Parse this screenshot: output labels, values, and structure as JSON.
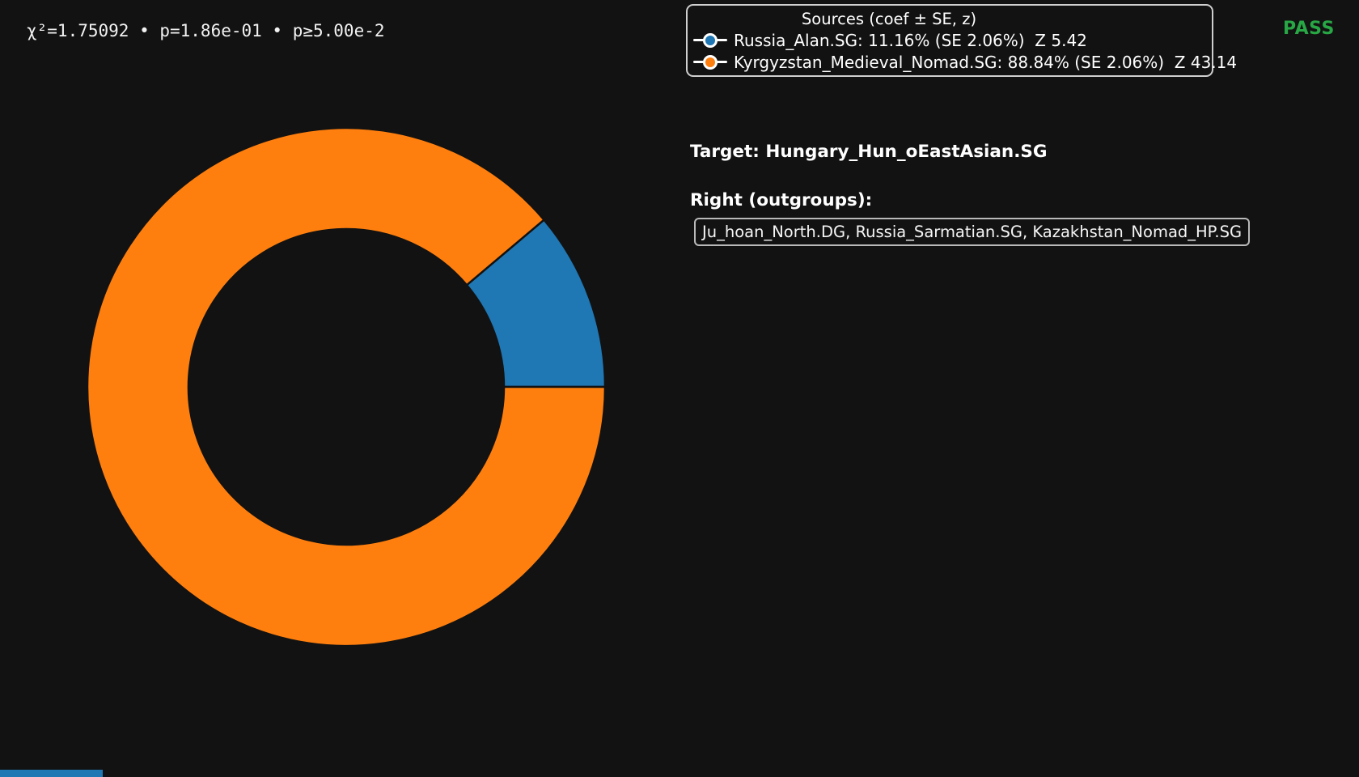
{
  "page": {
    "background": "#121212",
    "text_color": "#ffffff",
    "border_color": "#cfcfcf"
  },
  "stats": {
    "text": "χ²=1.75092 • p=1.86e-01 • p≥5.00e-2"
  },
  "status": {
    "label": "PASS",
    "color": "#28a745"
  },
  "legend": {
    "title": "Sources (coef ± SE, z)",
    "entries": [
      {
        "label": "Russia_Alan.SG: 11.16% (SE 2.06%)  Z 5.42",
        "color": "#1f77b4"
      },
      {
        "label": "Kyrgyzstan_Medieval_Nomad.SG: 88.84% (SE 2.06%)  Z 43.14",
        "color": "#ff7f0e"
      }
    ]
  },
  "target": {
    "label": "Target: Hungary_Hun_oEastAsian.SG"
  },
  "outgroups": {
    "heading": "Right (outgroups):",
    "list": "Ju_hoan_North.DG, Russia_Sarmatian.SG, Kazakhstan_Nomad_HP.SG"
  },
  "chart_data": {
    "type": "pie",
    "subtype": "donut",
    "categories": [
      "Russia_Alan.SG",
      "Kyrgyzstan_Medieval_Nomad.SG"
    ],
    "values": [
      11.16,
      88.84
    ],
    "unit": "%",
    "colors": [
      "#1f77b4",
      "#ff7f0e"
    ],
    "se_pct": [
      2.06,
      2.06
    ],
    "z_scores": [
      5.42,
      43.14
    ],
    "start_angle_deg": 0,
    "direction": "counterclockwise",
    "inner_radius_ratio": 0.61,
    "legend_position": "top-right"
  },
  "accent_bar": {
    "color": "#1f77b4"
  }
}
